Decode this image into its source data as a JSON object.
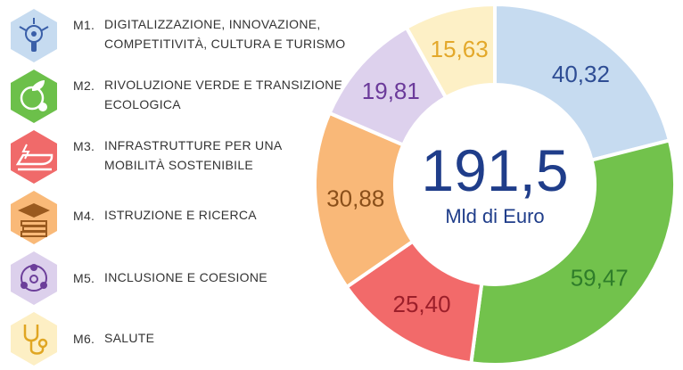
{
  "legend": {
    "items": [
      {
        "code": "M1.",
        "label_lines": [
          "DIGITALIZZAZIONE, INNOVAZIONE,",
          "COMPETITIVITÀ, CULTURA E TURISMO"
        ],
        "icon": "digital-touch-icon",
        "color": "#c6dbf0",
        "icon_color": "#3a5fa8"
      },
      {
        "code": "M2.",
        "label_lines": [
          "RIVOLUZIONE VERDE E TRANSIZIONE",
          "ECOLOGICA"
        ],
        "icon": "green-globe-icon",
        "color": "#6cc04a",
        "icon_color": "#ffffff"
      },
      {
        "code": "M3.",
        "label_lines": [
          "INFRASTRUTTURE PER UNA",
          "MOBILITÀ SOSTENIBILE"
        ],
        "icon": "train-icon",
        "color": "#f06a6a",
        "icon_color": "#ffffff"
      },
      {
        "code": "M4.",
        "label_lines": [
          "ISTRUZIONE E RICERCA"
        ],
        "icon": "graduation-cap-icon",
        "color": "#f9b978",
        "icon_color": "#9a5a1f"
      },
      {
        "code": "M5.",
        "label_lines": [
          "INCLUSIONE E COESIONE"
        ],
        "icon": "people-circle-icon",
        "color": "#dcd0ec",
        "icon_color": "#6c3f9a"
      },
      {
        "code": "M6.",
        "label_lines": [
          "SALUTE"
        ],
        "icon": "stethoscope-icon",
        "color": "#fdefc4",
        "icon_color": "#e0a622"
      }
    ]
  },
  "center": {
    "value": "191,5",
    "unit": "Mld di Euro"
  },
  "chart_data": {
    "type": "pie",
    "donut": true,
    "total": 191.5,
    "slices": [
      {
        "category": "M1",
        "value": 40.32,
        "label": "40,32",
        "color": "#c6dbf0",
        "label_color": "#2e4d94"
      },
      {
        "category": "M2",
        "value": 59.47,
        "label": "59,47",
        "color": "#72c24c",
        "label_color": "#2f7d2a"
      },
      {
        "category": "M3",
        "value": 25.4,
        "label": "25,40",
        "color": "#f26a6a",
        "label_color": "#9c1f2a"
      },
      {
        "category": "M4",
        "value": 30.88,
        "label": "30,88",
        "color": "#f9b878",
        "label_color": "#8a4f1a"
      },
      {
        "category": "M5",
        "value": 19.81,
        "label": "19,81",
        "color": "#ddd1ed",
        "label_color": "#6b3a9a"
      },
      {
        "category": "M6",
        "value": 15.63,
        "label": "15,63",
        "color": "#fdf0c6",
        "label_color": "#e3a82a"
      }
    ]
  }
}
